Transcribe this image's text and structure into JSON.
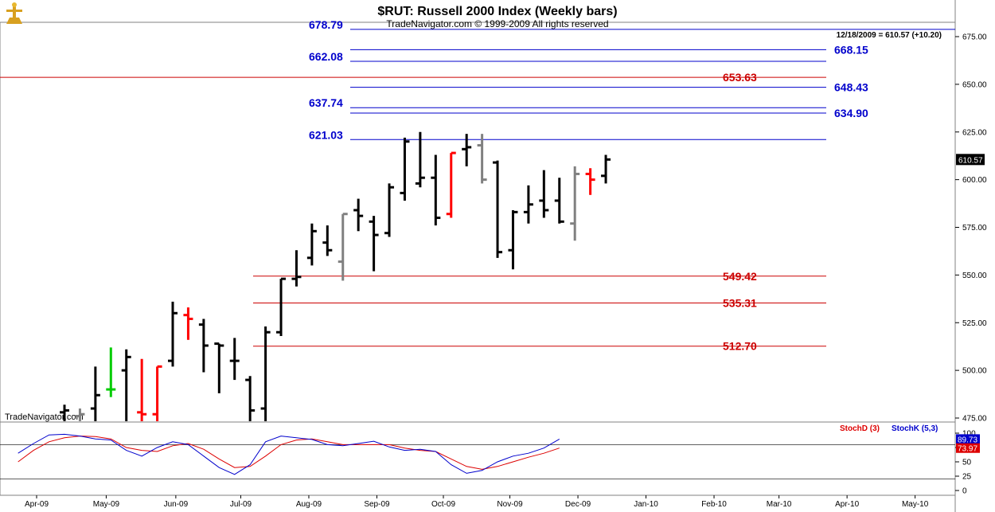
{
  "header": {
    "title": "$RUT:  Russell 2000 Index  (Weekly bars)",
    "subtitle": "TradeNavigator.com © 1999-2009 All rights reserved",
    "info_line": "12/18/2009 = 610.57 (+10.20)",
    "watermark": "TradeNavigator.com"
  },
  "colors": {
    "bar_up": "#000000",
    "bar_down_red": "#ff0000",
    "bar_grey": "#808080",
    "bar_green": "#00cc00",
    "fib_blue": "#0000cc",
    "fib_red": "#cc0000",
    "stoch_d": "#dd0000",
    "stoch_k": "#0000cc"
  },
  "chart_data": {
    "type": "ohlc",
    "y_axis": {
      "range": [
        470,
        680
      ],
      "ticks": [
        475,
        500,
        525,
        550,
        575,
        600,
        625,
        650,
        675
      ],
      "tick_labels": [
        "475.00",
        "500.00",
        "525.00",
        "550.00",
        "575.00",
        "600.00",
        "625.00",
        "650.00",
        "675.00"
      ],
      "last_price_label": "610.57"
    },
    "x_axis": {
      "labels": [
        "Apr-09",
        "May-09",
        "Jun-09",
        "Jul-09",
        "Aug-09",
        "Sep-09",
        "Oct-09",
        "Nov-09",
        "Dec-09",
        "Jan-10",
        "Feb-10",
        "Mar-10",
        "Apr-10",
        "May-10"
      ],
      "week_index": [
        0,
        4.5,
        9,
        13.2,
        17.6,
        22,
        26.3,
        30.6,
        35,
        39.4,
        43.8,
        48,
        52.4,
        56.8
      ]
    },
    "bars": [
      {
        "w": 0,
        "o": 478,
        "h": 482,
        "l": 470,
        "c": 479,
        "color": "black"
      },
      {
        "w": 1,
        "o": 476,
        "h": 480,
        "l": 470,
        "c": 477,
        "color": "grey"
      },
      {
        "w": 2,
        "o": 480,
        "h": 502,
        "l": 470,
        "c": 487,
        "color": "black"
      },
      {
        "w": 3,
        "o": 490,
        "h": 512,
        "l": 486,
        "c": 490,
        "color": "green"
      },
      {
        "w": 4,
        "o": 500,
        "h": 511,
        "l": 472,
        "c": 507,
        "color": "black"
      },
      {
        "w": 5,
        "o": 478,
        "h": 506,
        "l": 470,
        "c": 477,
        "color": "red"
      },
      {
        "w": 6,
        "o": 477,
        "h": 502,
        "l": 470,
        "c": 502,
        "color": "red"
      },
      {
        "w": 7,
        "o": 505,
        "h": 536,
        "l": 502,
        "c": 530,
        "color": "black"
      },
      {
        "w": 8,
        "o": 529,
        "h": 533,
        "l": 516,
        "c": 527,
        "color": "red"
      },
      {
        "w": 9,
        "o": 524,
        "h": 527,
        "l": 499,
        "c": 513,
        "color": "black"
      },
      {
        "w": 10,
        "o": 514,
        "h": 514,
        "l": 488,
        "c": 513,
        "color": "black"
      },
      {
        "w": 11,
        "o": 505,
        "h": 517,
        "l": 495,
        "c": 505,
        "color": "black"
      },
      {
        "w": 12,
        "o": 495,
        "h": 497,
        "l": 470,
        "c": 479,
        "color": "black"
      },
      {
        "w": 13,
        "o": 480,
        "h": 523,
        "l": 470,
        "c": 520,
        "color": "black"
      },
      {
        "w": 14,
        "o": 520,
        "h": 548,
        "l": 518,
        "c": 548,
        "color": "black"
      },
      {
        "w": 15,
        "o": 548,
        "h": 563,
        "l": 544,
        "c": 549,
        "color": "black"
      },
      {
        "w": 16,
        "o": 559,
        "h": 577,
        "l": 555,
        "c": 573,
        "color": "black"
      },
      {
        "w": 17,
        "o": 567,
        "h": 576,
        "l": 560,
        "c": 563,
        "color": "black"
      },
      {
        "w": 18,
        "o": 557,
        "h": 582,
        "l": 547,
        "c": 582,
        "color": "grey"
      },
      {
        "w": 19,
        "o": 584,
        "h": 590,
        "l": 573,
        "c": 581,
        "color": "black"
      },
      {
        "w": 20,
        "o": 578,
        "h": 581,
        "l": 552,
        "c": 571,
        "color": "black"
      },
      {
        "w": 21,
        "o": 572,
        "h": 598,
        "l": 570,
        "c": 596,
        "color": "black"
      },
      {
        "w": 22,
        "o": 593,
        "h": 622,
        "l": 589,
        "c": 620,
        "color": "black"
      },
      {
        "w": 23,
        "o": 598,
        "h": 625,
        "l": 596,
        "c": 601,
        "color": "black"
      },
      {
        "w": 24,
        "o": 601,
        "h": 613,
        "l": 576,
        "c": 580,
        "color": "black"
      },
      {
        "w": 25,
        "o": 582,
        "h": 614,
        "l": 580,
        "c": 614,
        "color": "red"
      },
      {
        "w": 26,
        "o": 616,
        "h": 624,
        "l": 607,
        "c": 617,
        "color": "black"
      },
      {
        "w": 27,
        "o": 618,
        "h": 624,
        "l": 598,
        "c": 600,
        "color": "grey"
      },
      {
        "w": 28,
        "o": 609,
        "h": 610,
        "l": 559,
        "c": 562,
        "color": "black"
      },
      {
        "w": 29,
        "o": 563,
        "h": 584,
        "l": 553,
        "c": 583,
        "color": "black"
      },
      {
        "w": 30,
        "o": 583,
        "h": 597,
        "l": 577,
        "c": 587,
        "color": "black"
      },
      {
        "w": 31,
        "o": 589,
        "h": 605,
        "l": 580,
        "c": 584,
        "color": "black"
      },
      {
        "w": 32,
        "o": 589,
        "h": 601,
        "l": 577,
        "c": 578,
        "color": "black"
      },
      {
        "w": 33,
        "o": 577,
        "h": 607,
        "l": 568,
        "c": 603,
        "color": "grey"
      },
      {
        "w": 34,
        "o": 603,
        "h": 606,
        "l": 592,
        "c": 600,
        "color": "red"
      },
      {
        "w": 35,
        "o": 602,
        "h": 613,
        "l": 598,
        "c": 610.57,
        "color": "black"
      }
    ],
    "levels": [
      {
        "value": 678.79,
        "label": "678.79",
        "color": "blue",
        "side": "left"
      },
      {
        "value": 668.15,
        "label": "668.15",
        "color": "blue",
        "side": "right"
      },
      {
        "value": 662.08,
        "label": "662.08",
        "color": "blue",
        "side": "left"
      },
      {
        "value": 653.63,
        "label": "653.63",
        "color": "red",
        "side": "right"
      },
      {
        "value": 648.43,
        "label": "648.43",
        "color": "blue",
        "side": "right"
      },
      {
        "value": 637.74,
        "label": "637.74",
        "color": "blue",
        "side": "left"
      },
      {
        "value": 634.9,
        "label": "634.90",
        "color": "blue",
        "side": "right"
      },
      {
        "value": 621.03,
        "label": "621.03",
        "color": "blue",
        "side": "left"
      },
      {
        "value": 549.42,
        "label": "549.42",
        "color": "red",
        "side": "right"
      },
      {
        "value": 535.31,
        "label": "535.31",
        "color": "red",
        "side": "right"
      },
      {
        "value": 512.7,
        "label": "512.70",
        "color": "red",
        "side": "right"
      }
    ],
    "stochastic": {
      "legend": [
        "StochD (3)",
        "StochK (5,3)"
      ],
      "y_range": [
        0,
        100
      ],
      "ticks": [
        0,
        25,
        50,
        75,
        100
      ],
      "tick_labels": [
        "0",
        "25",
        "50",
        "75",
        "100"
      ],
      "reference_levels": [
        20,
        80
      ],
      "k_label": "89.73",
      "d_label": "73.97",
      "stoch_k": [
        65,
        82,
        97,
        98,
        95,
        90,
        88,
        70,
        60,
        75,
        85,
        80,
        60,
        40,
        28,
        45,
        85,
        95,
        92,
        89,
        80,
        78,
        82,
        86,
        76,
        70,
        72,
        68,
        45,
        30,
        35,
        50,
        60,
        65,
        74,
        89.73
      ],
      "stoch_d": [
        50,
        70,
        85,
        92,
        95,
        94,
        90,
        75,
        70,
        68,
        78,
        82,
        72,
        55,
        40,
        42,
        60,
        80,
        88,
        90,
        85,
        80,
        80,
        80,
        80,
        74,
        70,
        68,
        55,
        42,
        37,
        42,
        50,
        58,
        65,
        73.97
      ]
    }
  }
}
